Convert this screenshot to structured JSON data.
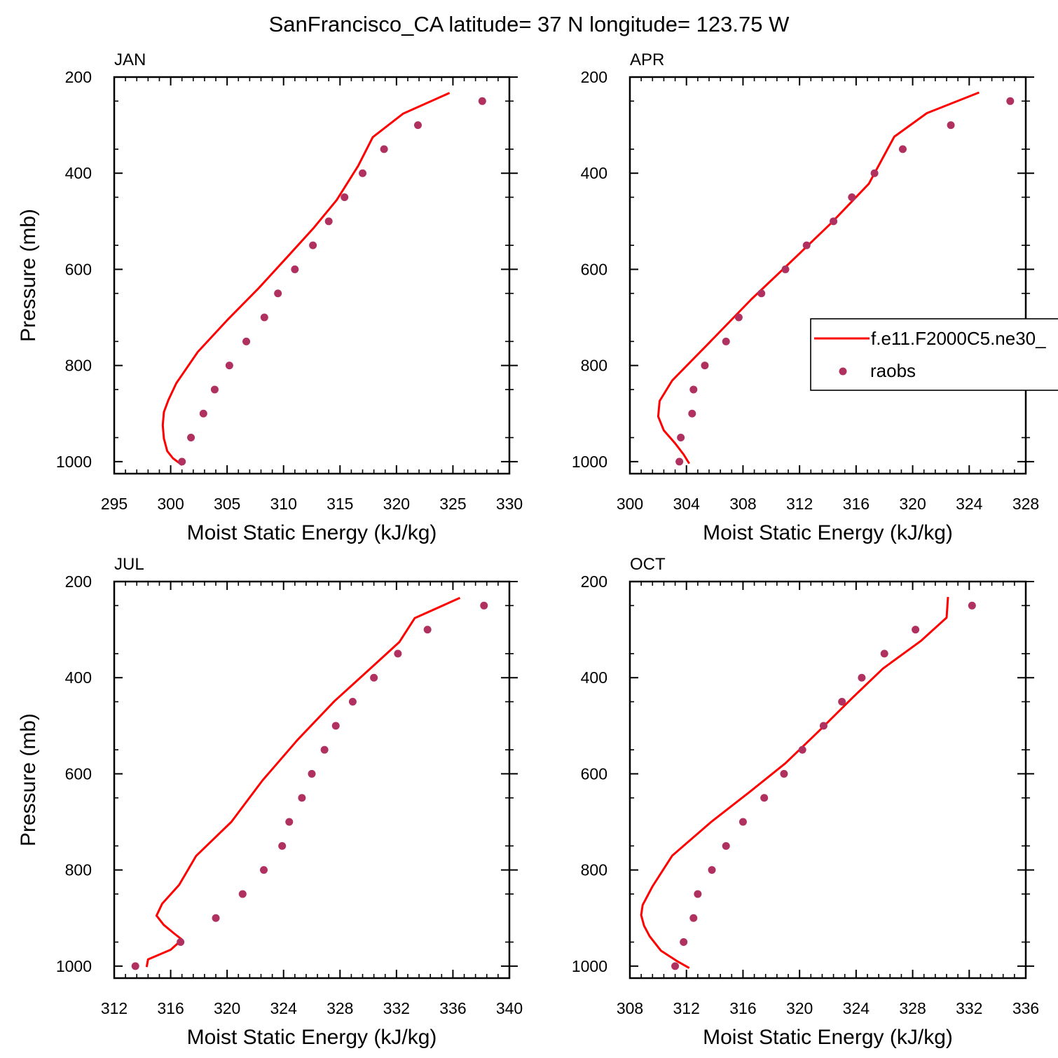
{
  "title": "SanFrancisco_CA  latitude= 37 N longitude= 123.75 W",
  "colors": {
    "model_line": "#ff0000",
    "raobs_marker": "#b03060",
    "axis": "#000000"
  },
  "legend": {
    "entries": [
      {
        "label": "f.e11.F2000C5.ne30_",
        "kind": "line"
      },
      {
        "label": "raobs",
        "kind": "marker"
      }
    ]
  },
  "chart_data": [
    {
      "type": "line",
      "panel_label": "JAN",
      "xlabel": "Moist Static Energy (kJ/kg)",
      "ylabel": "Pressure (mb)",
      "xlim": [
        295,
        330
      ],
      "ylim": [
        1025,
        200
      ],
      "xticks": [
        295,
        300,
        305,
        310,
        315,
        320,
        325,
        330
      ],
      "yticks": [
        200,
        400,
        600,
        800,
        1000
      ],
      "grid": false,
      "legend": false,
      "series": [
        {
          "points": [
            [
              301.0,
              1007
            ],
            [
              300.2,
              993
            ],
            [
              299.7,
              978
            ],
            [
              299.4,
              952
            ],
            [
              299.3,
              924
            ],
            [
              299.4,
              897
            ],
            [
              299.8,
              872
            ],
            [
              300.5,
              837
            ],
            [
              302.4,
              772
            ],
            [
              305.0,
              706
            ],
            [
              307.8,
              639
            ],
            [
              310.3,
              575
            ],
            [
              312.7,
              513
            ],
            [
              314.7,
              456
            ],
            [
              316.6,
              385
            ],
            [
              317.9,
              325
            ],
            [
              320.6,
              276
            ],
            [
              324.7,
              233
            ]
          ]
        },
        {
          "points": [
            [
              301.0,
              1000
            ],
            [
              301.8,
              950
            ],
            [
              302.9,
              900
            ],
            [
              303.9,
              850
            ],
            [
              305.2,
              800
            ],
            [
              306.7,
              750
            ],
            [
              308.3,
              700
            ],
            [
              309.5,
              650
            ],
            [
              311.0,
              600
            ],
            [
              312.6,
              550
            ],
            [
              314.0,
              500
            ],
            [
              315.4,
              450
            ],
            [
              317.0,
              400
            ],
            [
              318.9,
              350
            ],
            [
              321.9,
              300
            ],
            [
              327.6,
              250
            ]
          ]
        }
      ]
    },
    {
      "type": "line",
      "panel_label": "APR",
      "xlabel": "Moist Static Energy (kJ/kg)",
      "ylabel": "",
      "xlim": [
        300,
        328
      ],
      "ylim": [
        1025,
        200
      ],
      "xticks": [
        300,
        304,
        308,
        312,
        316,
        320,
        324,
        328
      ],
      "yticks": [
        200,
        400,
        600,
        800,
        1000
      ],
      "grid": false,
      "legend": true,
      "series": [
        {
          "points": [
            [
              304.2,
              1004
            ],
            [
              303.8,
              985
            ],
            [
              303.2,
              962
            ],
            [
              302.4,
              935
            ],
            [
              302.0,
              906
            ],
            [
              302.1,
              874
            ],
            [
              303.0,
              831
            ],
            [
              305.5,
              756
            ],
            [
              308.6,
              662
            ],
            [
              311.5,
              581
            ],
            [
              314.2,
              505
            ],
            [
              316.9,
              422
            ],
            [
              318.7,
              324
            ],
            [
              321.0,
              275
            ],
            [
              324.7,
              232
            ]
          ]
        },
        {
          "points": [
            [
              303.5,
              1000
            ],
            [
              303.6,
              950
            ],
            [
              304.4,
              900
            ],
            [
              304.5,
              850
            ],
            [
              305.3,
              800
            ],
            [
              306.8,
              750
            ],
            [
              307.7,
              700
            ],
            [
              309.3,
              650
            ],
            [
              311.0,
              600
            ],
            [
              312.5,
              550
            ],
            [
              314.4,
              500
            ],
            [
              315.7,
              450
            ],
            [
              317.3,
              400
            ],
            [
              319.3,
              350
            ],
            [
              322.7,
              300
            ],
            [
              326.9,
              250
            ]
          ]
        }
      ]
    },
    {
      "type": "line",
      "panel_label": "JUL",
      "xlabel": "Moist Static Energy (kJ/kg)",
      "ylabel": "Pressure (mb)",
      "xlim": [
        312,
        340
      ],
      "ylim": [
        1025,
        200
      ],
      "xticks": [
        312,
        316,
        320,
        324,
        328,
        332,
        336,
        340
      ],
      "yticks": [
        200,
        400,
        600,
        800,
        1000
      ],
      "grid": false,
      "legend": false,
      "series": [
        {
          "points": [
            [
              314.3,
              1002
            ],
            [
              314.4,
              986
            ],
            [
              316.0,
              966
            ],
            [
              316.8,
              945
            ],
            [
              316.2,
              931
            ],
            [
              315.5,
              914
            ],
            [
              315.0,
              895
            ],
            [
              315.4,
              870
            ],
            [
              316.6,
              831
            ],
            [
              317.8,
              771
            ],
            [
              320.3,
              700
            ],
            [
              322.5,
              614
            ],
            [
              325.0,
              529
            ],
            [
              327.6,
              449
            ],
            [
              330.3,
              377
            ],
            [
              332.2,
              326
            ],
            [
              333.3,
              276
            ],
            [
              336.5,
              234
            ]
          ]
        },
        {
          "points": [
            [
              313.5,
              1000
            ],
            [
              316.7,
              950
            ],
            [
              319.2,
              900
            ],
            [
              321.1,
              850
            ],
            [
              322.6,
              800
            ],
            [
              323.9,
              750
            ],
            [
              324.4,
              700
            ],
            [
              325.3,
              650
            ],
            [
              326.0,
              600
            ],
            [
              326.9,
              550
            ],
            [
              327.7,
              500
            ],
            [
              328.9,
              450
            ],
            [
              330.4,
              400
            ],
            [
              332.1,
              350
            ],
            [
              334.2,
              300
            ],
            [
              338.2,
              250
            ]
          ]
        }
      ]
    },
    {
      "type": "line",
      "panel_label": "OCT",
      "xlabel": "Moist Static Energy (kJ/kg)",
      "ylabel": "",
      "xlim": [
        308,
        336
      ],
      "ylim": [
        1025,
        200
      ],
      "xticks": [
        308,
        312,
        316,
        320,
        324,
        328,
        332,
        336
      ],
      "yticks": [
        200,
        400,
        600,
        800,
        1000
      ],
      "grid": false,
      "legend": false,
      "series": [
        {
          "points": [
            [
              312.2,
              1004
            ],
            [
              311.3,
              989
            ],
            [
              310.2,
              968
            ],
            [
              309.4,
              938
            ],
            [
              309.0,
              916
            ],
            [
              308.8,
              894
            ],
            [
              308.9,
              873
            ],
            [
              309.6,
              834
            ],
            [
              311.0,
              770
            ],
            [
              313.8,
              699
            ],
            [
              316.5,
              637
            ],
            [
              319.0,
              578
            ],
            [
              321.3,
              513
            ],
            [
              323.7,
              443
            ],
            [
              325.9,
              381
            ],
            [
              328.6,
              323
            ],
            [
              330.4,
              275
            ],
            [
              330.5,
              232
            ]
          ]
        },
        {
          "points": [
            [
              311.2,
              1000
            ],
            [
              311.8,
              950
            ],
            [
              312.5,
              900
            ],
            [
              312.8,
              850
            ],
            [
              313.8,
              800
            ],
            [
              314.8,
              750
            ],
            [
              316.0,
              700
            ],
            [
              317.5,
              650
            ],
            [
              318.9,
              600
            ],
            [
              320.2,
              550
            ],
            [
              321.7,
              500
            ],
            [
              323.0,
              450
            ],
            [
              324.4,
              400
            ],
            [
              326.0,
              350
            ],
            [
              328.2,
              300
            ],
            [
              332.2,
              250
            ]
          ]
        }
      ]
    }
  ]
}
